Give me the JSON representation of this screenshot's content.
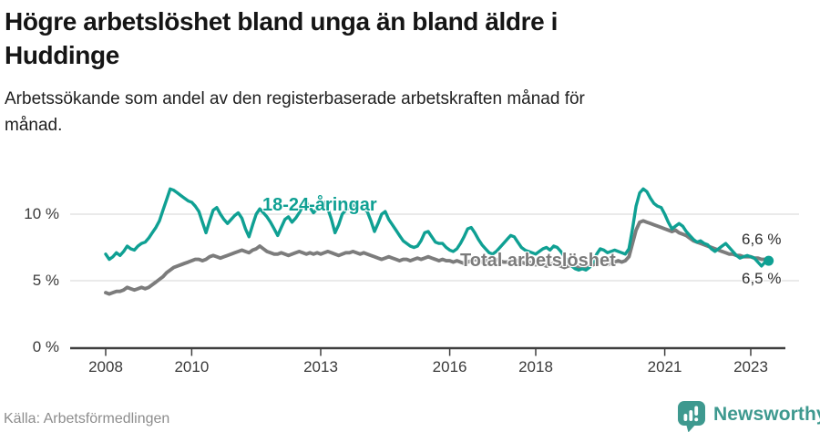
{
  "header": {
    "title_line1": "Högre arbetslöshet bland unga än bland äldre i",
    "title_line2": "Huddinge",
    "subtitle_line1": "Arbetssökande som andel av den registerbaserade arbetskraften månad för",
    "subtitle_line2": "månad."
  },
  "chart_data": {
    "type": "line",
    "frequency": "monthly",
    "x_start": "2008-01",
    "x_end": "2023-06",
    "unit": "percent",
    "grid": "horizontal",
    "ylim": [
      0,
      13
    ],
    "xticks": [
      2008,
      2010,
      2013,
      2016,
      2018,
      2021,
      2023
    ],
    "yticks": [
      {
        "value": 0,
        "label": "0 %"
      },
      {
        "value": 5,
        "label": "5 %"
      },
      {
        "value": 10,
        "label": "10 %"
      }
    ],
    "series": [
      {
        "name": "18-24-åringar",
        "color": "#0FA093",
        "end_label": "6,5 %",
        "end_dot": true,
        "values": [
          7.0,
          6.6,
          6.8,
          7.1,
          6.9,
          7.2,
          7.6,
          7.4,
          7.3,
          7.6,
          7.8,
          7.9,
          8.2,
          8.6,
          9.0,
          9.5,
          10.3,
          11.1,
          11.9,
          11.8,
          11.6,
          11.4,
          11.2,
          11.0,
          10.9,
          10.6,
          10.2,
          9.4,
          8.6,
          9.5,
          10.3,
          10.5,
          10.0,
          9.6,
          9.3,
          9.6,
          9.9,
          10.1,
          9.7,
          8.9,
          8.3,
          9.2,
          10.0,
          10.4,
          10.1,
          9.8,
          9.4,
          8.9,
          8.4,
          9.0,
          9.6,
          9.8,
          9.4,
          9.7,
          10.1,
          10.6,
          10.9,
          10.5,
          10.1,
          10.4,
          10.7,
          10.9,
          10.4,
          9.6,
          8.6,
          9.2,
          10.0,
          10.3,
          10.5,
          10.7,
          10.6,
          10.5,
          10.4,
          10.2,
          9.5,
          8.7,
          9.3,
          10.0,
          10.2,
          9.6,
          9.2,
          8.8,
          8.4,
          8.0,
          7.8,
          7.6,
          7.5,
          7.6,
          8.0,
          8.6,
          8.7,
          8.3,
          7.9,
          7.8,
          7.8,
          7.5,
          7.3,
          7.2,
          7.4,
          7.8,
          8.3,
          8.9,
          9.0,
          8.6,
          8.1,
          7.7,
          7.4,
          7.1,
          7.0,
          7.2,
          7.5,
          7.8,
          8.1,
          8.4,
          8.3,
          7.9,
          7.5,
          7.3,
          7.2,
          7.1,
          7.0,
          7.2,
          7.4,
          7.5,
          7.3,
          7.6,
          7.5,
          7.2,
          6.8,
          6.4,
          6.1,
          5.9,
          5.8,
          5.9,
          5.8,
          6.0,
          6.4,
          7.0,
          7.4,
          7.3,
          7.1,
          7.2,
          7.3,
          7.2,
          7.1,
          7.0,
          7.4,
          8.9,
          10.6,
          11.6,
          11.9,
          11.7,
          11.2,
          10.8,
          10.6,
          10.5,
          10.0,
          9.4,
          8.9,
          9.1,
          9.3,
          9.1,
          8.7,
          8.4,
          8.1,
          7.9,
          8.0,
          7.8,
          7.7,
          7.4,
          7.2,
          7.4,
          7.6,
          7.8,
          7.5,
          7.2,
          6.9,
          6.7,
          6.8,
          6.9,
          6.8,
          6.7,
          6.4,
          6.1,
          6.4,
          6.5
        ]
      },
      {
        "name": "Total arbetslöshet",
        "color": "#7C7C7C",
        "end_label": "6,6 %",
        "end_dot": false,
        "values": [
          4.1,
          4.0,
          4.1,
          4.2,
          4.2,
          4.3,
          4.5,
          4.4,
          4.3,
          4.4,
          4.5,
          4.4,
          4.5,
          4.7,
          4.9,
          5.1,
          5.3,
          5.6,
          5.8,
          6.0,
          6.1,
          6.2,
          6.3,
          6.4,
          6.5,
          6.6,
          6.6,
          6.5,
          6.6,
          6.8,
          6.9,
          6.8,
          6.7,
          6.8,
          6.9,
          7.0,
          7.1,
          7.2,
          7.3,
          7.2,
          7.1,
          7.3,
          7.4,
          7.6,
          7.4,
          7.2,
          7.1,
          7.0,
          7.0,
          7.1,
          7.0,
          6.9,
          7.0,
          7.1,
          7.2,
          7.1,
          7.0,
          7.1,
          7.0,
          7.1,
          7.0,
          7.1,
          7.2,
          7.1,
          7.0,
          6.9,
          7.0,
          7.1,
          7.1,
          7.2,
          7.1,
          7.0,
          7.1,
          7.0,
          6.9,
          6.8,
          6.7,
          6.6,
          6.7,
          6.8,
          6.7,
          6.6,
          6.5,
          6.6,
          6.6,
          6.5,
          6.6,
          6.7,
          6.6,
          6.7,
          6.8,
          6.7,
          6.6,
          6.5,
          6.6,
          6.5,
          6.5,
          6.4,
          6.5,
          6.4,
          6.3,
          6.4,
          6.5,
          6.6,
          6.5,
          6.4,
          6.5,
          6.6,
          6.5,
          6.6,
          6.5,
          6.4,
          6.4,
          6.5,
          6.6,
          6.5,
          6.4,
          6.3,
          6.4,
          6.3,
          6.2,
          6.3,
          6.2,
          6.1,
          6.2,
          6.3,
          6.2,
          6.1,
          6.0,
          6.1,
          6.2,
          6.1,
          6.0,
          6.1,
          6.0,
          6.1,
          6.2,
          6.3,
          6.4,
          6.3,
          6.2,
          6.3,
          6.4,
          6.5,
          6.4,
          6.5,
          6.8,
          7.8,
          8.8,
          9.4,
          9.5,
          9.4,
          9.3,
          9.2,
          9.1,
          9.0,
          8.9,
          8.8,
          8.7,
          8.8,
          8.6,
          8.5,
          8.4,
          8.2,
          8.0,
          7.9,
          7.8,
          7.7,
          7.6,
          7.5,
          7.4,
          7.3,
          7.2,
          7.1,
          7.0,
          7.0,
          6.9,
          6.9,
          6.8,
          6.8,
          6.8,
          6.7,
          6.7,
          6.6,
          6.6,
          6.6
        ]
      }
    ],
    "style": {
      "grid_color": "#dedede",
      "axis_color": "#3f3f3f",
      "tick_label_color": "#3a3a3a"
    }
  },
  "footer": {
    "source": "Källa: Arbetsförmedlingen",
    "brand": "Newsworthy",
    "brand_color": "#3E998F",
    "brand_icon": "newsworthy-chart-bubble-icon"
  }
}
